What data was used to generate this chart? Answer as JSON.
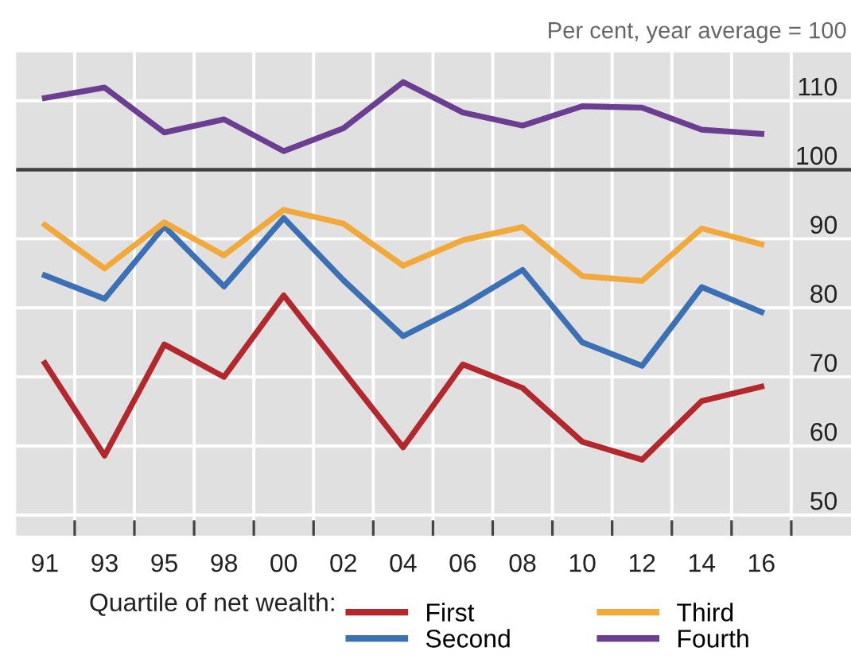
{
  "chart_data": {
    "type": "line",
    "ylabel": "Per cent, year average = 100",
    "categories": [
      "91",
      "93",
      "95",
      "98",
      "00",
      "02",
      "04",
      "06",
      "08",
      "10",
      "12",
      "14",
      "16"
    ],
    "series": [
      {
        "name": "First",
        "color": "#b3282d",
        "values": [
          72,
          58.6,
          74.7,
          70,
          81.8,
          70.8,
          59.8,
          71.8,
          68.4,
          60.6,
          58,
          66.5,
          68.6
        ]
      },
      {
        "name": "Second",
        "color": "#3b70b5",
        "values": [
          84.7,
          81.3,
          91.8,
          83.1,
          93,
          84,
          75.9,
          80.3,
          85.5,
          75,
          71.6,
          83,
          79.4
        ]
      },
      {
        "name": "Third",
        "color": "#f2a93b",
        "values": [
          92,
          85.7,
          92.4,
          87.6,
          94.2,
          92.2,
          86.1,
          89.8,
          91.7,
          84.6,
          83.9,
          91.5,
          89.2
        ]
      },
      {
        "name": "Fourth",
        "color": "#6b3e91",
        "values": [
          110.4,
          111.9,
          105.4,
          107.3,
          102.7,
          106,
          112.7,
          108.3,
          106.4,
          109.2,
          109,
          105.8,
          105.2
        ]
      }
    ],
    "ylim": [
      47,
      117
    ],
    "yticks": [
      50,
      60,
      70,
      80,
      90,
      100,
      110
    ],
    "ref_lines": [
      {
        "axis": "y",
        "value": 100,
        "color": "#404040"
      }
    ],
    "grid": true,
    "legend": "bottom",
    "legend_title": "Quartile of net wealth:",
    "marker": "none",
    "line_style": "solid"
  }
}
